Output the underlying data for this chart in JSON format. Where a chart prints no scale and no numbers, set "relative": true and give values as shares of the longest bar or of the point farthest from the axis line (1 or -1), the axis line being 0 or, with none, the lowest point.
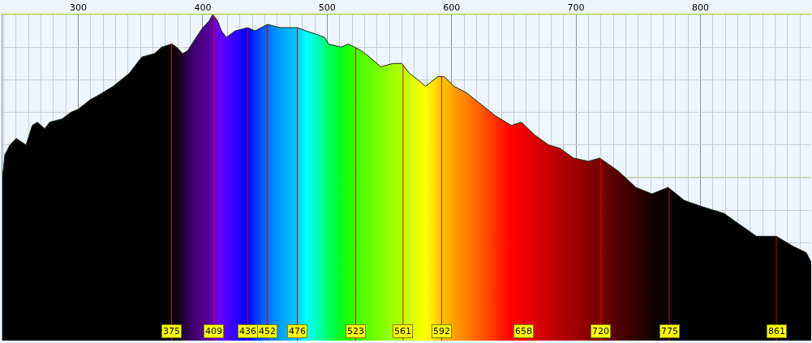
{
  "chart_data": {
    "type": "area",
    "relative": true,
    "x": [
      239,
      241,
      245,
      250,
      258,
      263,
      267,
      273,
      277,
      287,
      294,
      300,
      310,
      315,
      328,
      341,
      351,
      361,
      367,
      375,
      379,
      384,
      388,
      393,
      400,
      405,
      408,
      412,
      415,
      419,
      426,
      436,
      442,
      452,
      462,
      476,
      483,
      491,
      498,
      501,
      511,
      517,
      522,
      527,
      534,
      543,
      553,
      560,
      566,
      573,
      579,
      589,
      594,
      602,
      612,
      622,
      635,
      648,
      656,
      667,
      678,
      687,
      698,
      710,
      719,
      734,
      748,
      761,
      774,
      787,
      802,
      819,
      830,
      845,
      861,
      874,
      885,
      889
    ],
    "series": [
      {
        "color": "#1a2a1a",
        "values": [
          0.5,
          0.57,
          0.6,
          0.62,
          0.6,
          0.66,
          0.67,
          0.65,
          0.67,
          0.68,
          0.7,
          0.71,
          0.74,
          0.75,
          0.78,
          0.82,
          0.87,
          0.88,
          0.9,
          0.91,
          0.9,
          0.88,
          0.89,
          0.92,
          0.96,
          0.98,
          1.0,
          0.98,
          0.95,
          0.93,
          0.95,
          0.96,
          0.95,
          0.97,
          0.96,
          0.96,
          0.95,
          0.94,
          0.93,
          0.91,
          0.9,
          0.91,
          0.9,
          0.89,
          0.87,
          0.84,
          0.85,
          0.85,
          0.82,
          0.8,
          0.78,
          0.81,
          0.81,
          0.78,
          0.76,
          0.73,
          0.69,
          0.66,
          0.67,
          0.63,
          0.6,
          0.59,
          0.56,
          0.55,
          0.56,
          0.52,
          0.47,
          0.45,
          0.47,
          0.43,
          0.41,
          0.39,
          0.36,
          0.32,
          0.32,
          0.29,
          0.27,
          0.24
        ],
        "colors": [
          "#000000",
          "#000000",
          "#000000",
          "#000000",
          "#000000",
          "#000000",
          "#000000",
          "#000000",
          "#000000",
          "#000000",
          "#000000",
          "#000000",
          "#000000",
          "#000000",
          "#000000",
          "#000000",
          "#000000",
          "#000000",
          "#000000",
          "#000000",
          "#100010",
          "#200030",
          "#300050",
          "#400070",
          "#50008a",
          "#580098",
          "#6000c0",
          "#6400f0",
          "#6000ff",
          "#5000ff",
          "#3000ff",
          "#0000ff",
          "#0030ff",
          "#0070ff",
          "#00a0ff",
          "#00c8ff",
          "#00ffff",
          "#00ffc0",
          "#00ff80",
          "#00ff60",
          "#00ff20",
          "#20ff00",
          "#30ff00",
          "#50ff00",
          "#60ff00",
          "#80ff00",
          "#a0ff00",
          "#b0ff00",
          "#d0ff00",
          "#f0ff00",
          "#ffff00",
          "#ffd000",
          "#ffc000",
          "#ffa000",
          "#ff8000",
          "#ff6000",
          "#ff3000",
          "#ff0000",
          "#f40000",
          "#e00000",
          "#c80000",
          "#b40000",
          "#a00000",
          "#880000",
          "#780000",
          "#500000",
          "#300000",
          "#180000",
          "#000000",
          "#000000",
          "#000000",
          "#000000",
          "#000000",
          "#000000",
          "#000000",
          "#000000",
          "#000000",
          "#000000"
        ]
      }
    ],
    "xlim": [
      239,
      889
    ],
    "xticks": [
      300,
      400,
      500,
      600,
      700,
      800
    ],
    "grid": true,
    "tick_labels": "x",
    "ref_lines": [
      {
        "axis": "x",
        "value": 375,
        "label": "375",
        "color": "#e00000"
      },
      {
        "axis": "x",
        "value": 409,
        "label": "409",
        "color": "#e00000"
      },
      {
        "axis": "x",
        "value": 436,
        "label": "436",
        "color": "#e00000"
      },
      {
        "axis": "x",
        "value": 452,
        "label": "452",
        "color": "#e00000"
      },
      {
        "axis": "x",
        "value": 476,
        "label": "476",
        "color": "#e00000"
      },
      {
        "axis": "x",
        "value": 523,
        "label": "523",
        "color": "#e00000"
      },
      {
        "axis": "x",
        "value": 561,
        "label": "561",
        "color": "#e00000"
      },
      {
        "axis": "x",
        "value": 592,
        "label": "592",
        "color": "#e00000"
      },
      {
        "axis": "x",
        "value": 658,
        "label": "658",
        "color": "#e00000"
      },
      {
        "axis": "x",
        "value": 720,
        "label": "720",
        "color": "#e00000"
      },
      {
        "axis": "x",
        "value": 775,
        "label": "775",
        "color": "#e00000"
      },
      {
        "axis": "x",
        "value": 861,
        "label": "861",
        "color": "#e00000"
      },
      {
        "axis": "y",
        "value": 0.5,
        "color": "#99cc33"
      }
    ]
  }
}
